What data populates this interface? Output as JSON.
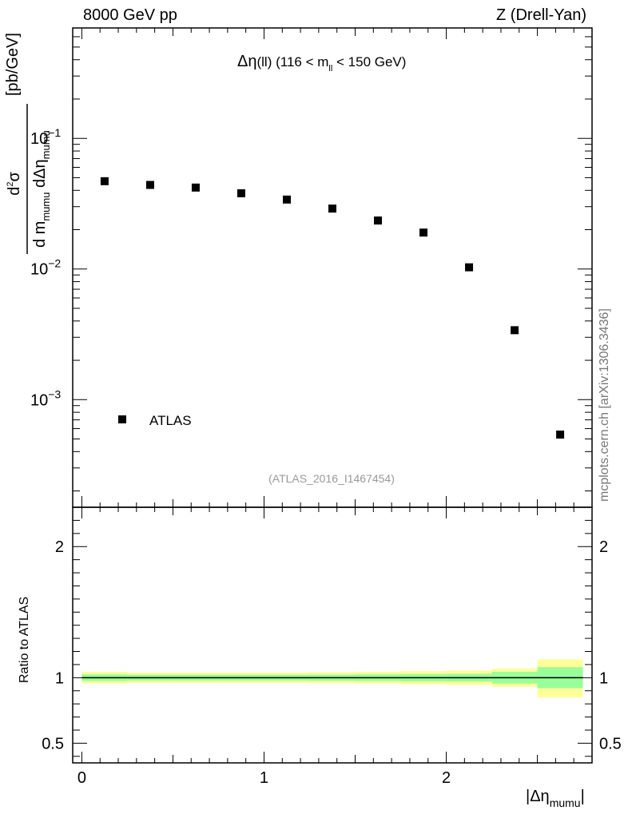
{
  "header": {
    "energy_label": "8000 GeV pp",
    "process_label": "Z (Drell-Yan)",
    "side_note": "mcplots.cern.ch [arXiv:1306.3436]"
  },
  "upper_panel": {
    "title_text": "(ll) (116 < m",
    "title_tail": " < 150 GeV)",
    "title_subscript": "ll",
    "ylabel_unit": "[pb/GeV]",
    "analysis_tag": "(ATLAS_2016_I1467454)",
    "legend_label": "ATLAS"
  },
  "lower_panel": {
    "ylabel": "Ratio to ATLAS"
  },
  "colors": {
    "marker": "#000000",
    "band_inner": "#99ff99",
    "band_outer": "#ffff99",
    "analysis_tag": "#999999",
    "side_note": "#777777"
  },
  "chart_data": [
    {
      "type": "scatter",
      "title": "Δη(ll) (116 < m_ll < 150 GeV)",
      "xlabel": "|Δη_mumu|",
      "ylabel": "d²σ / (d m_mumu dΔη_mumu) [pb/GeV]",
      "yscale": "log",
      "xlim": [
        -0.05,
        2.8
      ],
      "ylim": [
        0.00015,
        0.7
      ],
      "yticks": [
        0.001,
        0.01,
        0.1
      ],
      "ytick_labels": [
        "10^-3",
        "10^-2",
        "10^-1"
      ],
      "legend": "left",
      "series": [
        {
          "name": "ATLAS",
          "x": [
            0.125,
            0.375,
            0.625,
            0.875,
            1.125,
            1.375,
            1.625,
            1.875,
            2.125,
            2.375,
            2.625
          ],
          "y": [
            0.047,
            0.044,
            0.042,
            0.038,
            0.034,
            0.029,
            0.0235,
            0.019,
            0.0103,
            0.0034,
            0.00054
          ]
        }
      ]
    },
    {
      "type": "area",
      "xlabel": "|Δη_mumu|",
      "ylabel": "Ratio to ATLAS",
      "xlim": [
        -0.05,
        2.8
      ],
      "ylim": [
        0.35,
        2.3
      ],
      "xticks": [
        0,
        1,
        2
      ],
      "yticks": [
        0.5,
        1,
        2
      ],
      "reference_line": 1,
      "bins": [
        0,
        0.25,
        0.5,
        0.75,
        1.0,
        1.25,
        1.5,
        1.75,
        2.0,
        2.25,
        2.5,
        2.75
      ],
      "inner_band": {
        "low": [
          0.975,
          0.978,
          0.978,
          0.978,
          0.978,
          0.977,
          0.975,
          0.972,
          0.97,
          0.955,
          0.92
        ],
        "high": [
          1.025,
          1.022,
          1.022,
          1.022,
          1.022,
          1.023,
          1.025,
          1.028,
          1.03,
          1.045,
          1.08
        ]
      },
      "outer_band": {
        "low": [
          0.955,
          0.96,
          0.96,
          0.96,
          0.96,
          0.958,
          0.955,
          0.95,
          0.945,
          0.93,
          0.85
        ],
        "high": [
          1.045,
          1.04,
          1.04,
          1.04,
          1.04,
          1.042,
          1.045,
          1.05,
          1.055,
          1.07,
          1.14
        ]
      }
    }
  ]
}
